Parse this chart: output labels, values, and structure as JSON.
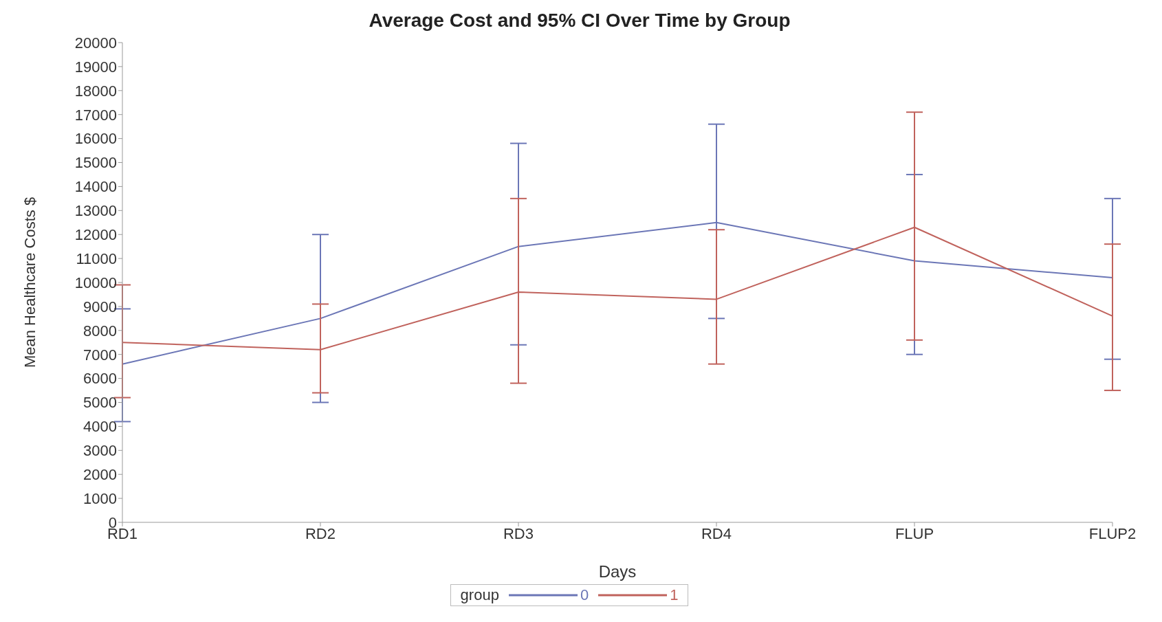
{
  "chart_data": {
    "type": "line",
    "title": "Average Cost and 95% CI Over Time by Group",
    "xlabel": "Days",
    "ylabel": "Mean Healthcare Costs $",
    "legend_title": "group",
    "categories": [
      "RD1",
      "RD2",
      "RD3",
      "RD4",
      "FLUP",
      "FLUP2"
    ],
    "series": [
      {
        "name": "0",
        "color": "#6b76b6",
        "values": [
          6600,
          8500,
          11500,
          12500,
          10900,
          10200
        ],
        "errors": [
          [
            4200,
            8900
          ],
          [
            5000,
            12000
          ],
          [
            7400,
            15800
          ],
          [
            8500,
            16600
          ],
          [
            7000,
            14500
          ],
          [
            6800,
            13500
          ]
        ]
      },
      {
        "name": "1",
        "color": "#c0625c",
        "values": [
          7500,
          7200,
          9600,
          9300,
          12300,
          8600
        ],
        "errors": [
          [
            5200,
            9900
          ],
          [
            5400,
            9100
          ],
          [
            5800,
            13500
          ],
          [
            6600,
            12200
          ],
          [
            7600,
            17100
          ],
          [
            5500,
            11600
          ]
        ]
      }
    ],
    "ylim": [
      0,
      20000
    ],
    "yticks": [
      0,
      1000,
      2000,
      3000,
      4000,
      5000,
      6000,
      7000,
      8000,
      9000,
      10000,
      11000,
      12000,
      13000,
      14000,
      15000,
      16000,
      17000,
      18000,
      19000,
      20000
    ],
    "grid": false,
    "legend": "bottom",
    "marker": "none",
    "line_style": "solid"
  }
}
